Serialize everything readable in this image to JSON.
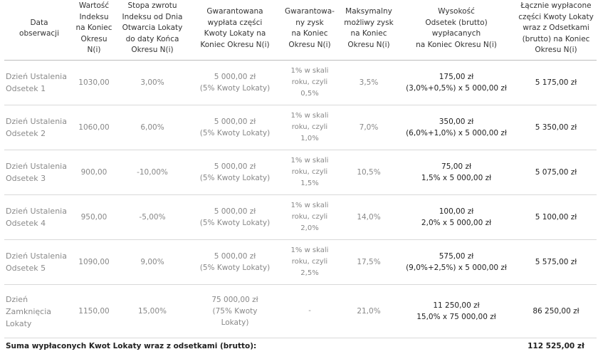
{
  "headers": [
    [
      "Data",
      "obserwacji"
    ],
    [
      "Wartość",
      "Indeksu",
      "na Koniec",
      "Okresu",
      "N(i)"
    ],
    [
      "Stopa zwrotu",
      "Indeksu od Dnia",
      "Otwarcia Lokaty",
      "do daty Końca",
      "Okresu N(i)"
    ],
    [
      "Gwarantowana",
      "wypłata części",
      "Kwoty Lokaty na",
      "Koniec Okresu N(i)"
    ],
    [
      "Gwarantowa-",
      "ny zysk",
      "na Koniec",
      "Okresu N(i)"
    ],
    [
      "Maksymalny",
      "możliwy zysk",
      "na Koniec",
      "Okresu N(i)"
    ],
    [
      "Wysokość",
      "Odsetek (brutto)",
      "wypłacanych",
      "na Koniec Okresu N(i)"
    ],
    [
      "Łącznie wypłacone",
      "części Kwoty Lokaty",
      "wraz  z Odsetkami",
      "(brutto) na Koniec",
      "Okresu N(i)"
    ]
  ],
  "rows": [
    {
      "date": [
        "Dzień Ustalenia",
        "Odsetek 1"
      ],
      "index": "1030,00",
      "return": "3,00%",
      "guaranteed_payout": [
        "5 000,00 zł",
        "(5% Kwoty Lokaty)"
      ],
      "guaranteed_gain": [
        "1% w skali",
        "roku, czyli",
        "0,5%"
      ],
      "max_gain": "3,5%",
      "interest": [
        "175,00 zł",
        "(3,0%+0,5%) x 5 000,00 zł"
      ],
      "total": "5 175,00 zł"
    },
    {
      "date": [
        "Dzień Ustalenia",
        "Odsetek 2"
      ],
      "index": "1060,00",
      "return": "6,00%",
      "guaranteed_payout": [
        "5 000,00 zł",
        "(5% Kwoty Lokaty)"
      ],
      "guaranteed_gain": [
        "1% w skali",
        "roku, czyli",
        "1,0%"
      ],
      "max_gain": "7,0%",
      "interest": [
        "350,00 zł",
        "(6,0%+1,0%)  x 5 000,00 zł"
      ],
      "total": "5 350,00 zł"
    },
    {
      "date": [
        "Dzień Ustalenia",
        "Odsetek 3"
      ],
      "index": "900,00",
      "return": "-10,00%",
      "guaranteed_payout": [
        "5 000,00 zł",
        "(5% Kwoty Lokaty)"
      ],
      "guaranteed_gain": [
        "1% w skali",
        "roku, czyli",
        "1,5%"
      ],
      "max_gain": "10,5%",
      "interest": [
        "75,00 zł",
        "1,5% x 5 000,00 zł"
      ],
      "total": "5 075,00 zł"
    },
    {
      "date": [
        "Dzień Ustalenia",
        "Odsetek 4"
      ],
      "index": "950,00",
      "return": "-5,00%",
      "guaranteed_payout": [
        "5 000,00 zł",
        "(5% Kwoty Lokaty)"
      ],
      "guaranteed_gain": [
        "1% w skali",
        "roku, czyli",
        "2,0%"
      ],
      "max_gain": "14,0%",
      "interest": [
        "100,00 zł",
        "2,0% x 5 000,00 zł"
      ],
      "total": "5 100,00 zł"
    },
    {
      "date": [
        "Dzień Ustalenia",
        "Odsetek 5"
      ],
      "index": "1090,00",
      "return": "9,00%",
      "guaranteed_payout": [
        "5 000,00 zł",
        "(5% Kwoty Lokaty)"
      ],
      "guaranteed_gain": [
        "1% w skali",
        "roku, czyli",
        "2,5%"
      ],
      "max_gain": "17,5%",
      "interest": [
        "575,00 zł",
        "(9,0%+2,5%) x 5 000,00 zł"
      ],
      "total": "5 575,00 zł"
    },
    {
      "date": [
        "Dzień Zamknięcia",
        "Lokaty"
      ],
      "index": "1150,00",
      "return": "15,00%",
      "guaranteed_payout": [
        "75 000,00 zł",
        "(75% Kwoty",
        "Lokaty)"
      ],
      "guaranteed_gain": [
        "-"
      ],
      "max_gain": "21,0%",
      "interest": [
        "11 250,00 zł",
        "15,0% x 75 000,00 zł"
      ],
      "total": "86 250,00 zł"
    }
  ],
  "sum": {
    "label": "Suma wypłaconych Kwot Lokaty wraz z odsetkami (brutto):",
    "value": "112 525,00 zł"
  }
}
